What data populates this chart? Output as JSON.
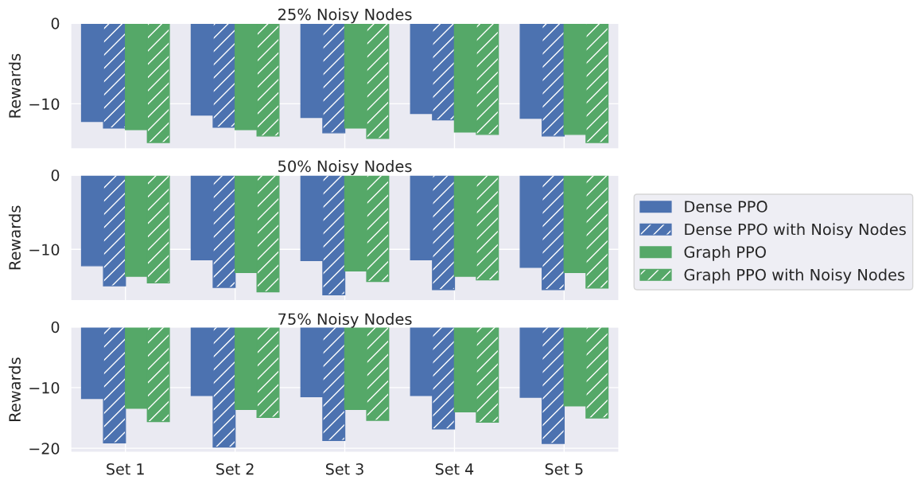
{
  "chart_data": [
    {
      "type": "bar",
      "title": "25% Noisy Nodes",
      "ylabel": "Rewards",
      "categories": [
        null,
        null,
        null,
        null,
        null
      ],
      "ylim": [
        -15.6,
        0
      ],
      "yticks": [
        -10,
        0
      ],
      "grid": true,
      "tick_labels": "y",
      "legend": "right",
      "series": [
        {
          "name": "Dense PPO",
          "color": "#4c72b0",
          "values": [
            -12.2,
            -11.4,
            -11.7,
            -11.2,
            -11.8
          ]
        },
        {
          "name": "Dense PPO with Noisy Nodes",
          "color": "#4c72b0",
          "values": [
            -13.0,
            -12.9,
            -13.6,
            -12.0,
            -14.0
          ]
        },
        {
          "name": "Graph PPO",
          "color": "#55a868",
          "values": [
            -13.2,
            -13.2,
            -13.0,
            -13.5,
            -13.8
          ]
        },
        {
          "name": "Graph PPO with Noisy Nodes",
          "color": "#55a868",
          "values": [
            -14.8,
            -14.0,
            -14.3,
            -13.8,
            -14.8
          ]
        }
      ]
    },
    {
      "type": "bar",
      "title": "50% Noisy Nodes",
      "ylabel": "Rewards",
      "categories": [
        null,
        null,
        null,
        null,
        null
      ],
      "ylim": [
        -16.9,
        0
      ],
      "yticks": [
        -10,
        0
      ],
      "grid": true,
      "tick_labels": "y",
      "series": [
        {
          "color": "#4c72b0",
          "values": [
            -12.2,
            -11.4,
            -11.5,
            -11.4,
            -12.4
          ]
        },
        {
          "color": "#4c72b0",
          "values": [
            -14.9,
            -15.1,
            -16.1,
            -15.4,
            -15.4
          ]
        },
        {
          "color": "#55a868",
          "values": [
            -13.6,
            -13.1,
            -12.9,
            -13.6,
            -13.1
          ]
        },
        {
          "color": "#55a868",
          "values": [
            -14.5,
            -15.7,
            -14.3,
            -14.1,
            -15.2
          ]
        }
      ]
    },
    {
      "type": "bar",
      "title": "75% Noisy Nodes",
      "ylabel": "Rewards",
      "categories": [
        "Set 1",
        "Set 2",
        "Set 3",
        "Set 4",
        "Set 5"
      ],
      "ylim": [
        -20.7,
        0
      ],
      "yticks": [
        -20,
        -10,
        0
      ],
      "grid": true,
      "series": [
        {
          "color": "#4c72b0",
          "values": [
            -11.8,
            -11.3,
            -11.5,
            -11.3,
            -11.6
          ]
        },
        {
          "color": "#4c72b0",
          "values": [
            -19.1,
            -19.8,
            -18.7,
            -16.8,
            -19.2
          ]
        },
        {
          "color": "#55a868",
          "values": [
            -13.4,
            -13.6,
            -13.6,
            -14.0,
            -13.0
          ]
        },
        {
          "color": "#55a868",
          "values": [
            -15.6,
            -14.9,
            -15.4,
            -15.7,
            -15.0
          ]
        }
      ]
    }
  ]
}
